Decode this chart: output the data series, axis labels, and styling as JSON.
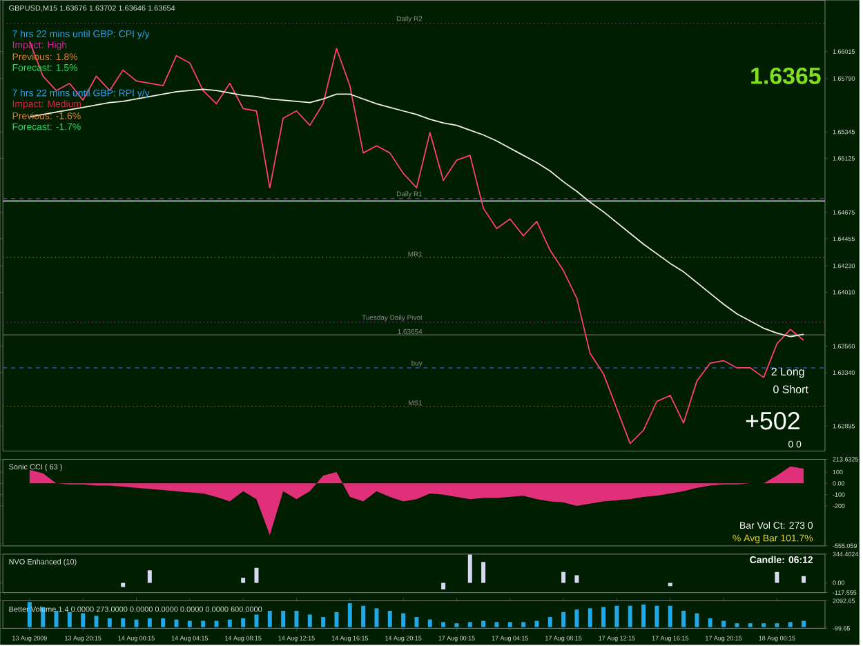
{
  "chart_data": [
    {
      "type": "line",
      "title": "GBPUSD,M15  1.63676 1.63702 1.63646 1.63654",
      "categories": [
        null,
        null,
        null,
        null,
        null,
        null,
        null,
        null,
        null,
        null,
        null,
        null,
        null,
        null,
        null,
        null,
        null,
        null,
        null,
        null,
        null,
        null,
        null,
        null,
        null,
        null,
        null,
        null,
        null,
        null,
        null,
        null,
        null,
        null,
        null,
        null,
        null,
        null,
        null,
        null,
        null,
        null,
        null,
        null,
        null,
        null,
        null,
        null,
        null,
        null,
        null,
        null,
        null,
        null,
        null,
        null,
        null,
        null,
        null,
        null
      ],
      "ylim": [
        1.62687,
        1.66442
      ],
      "tick_labels": "y",
      "yticks": [
        1.66015,
        {
          "value": 1.6579,
          "label": "1.65790"
        },
        1.65345,
        1.65125,
        1.64675,
        1.64455,
        {
          "value": 1.6423,
          "label": "1.64230"
        },
        {
          "value": 1.6401,
          "label": "1.64010"
        },
        {
          "value": 1.6356,
          "label": "1.63560"
        },
        {
          "value": 1.6334,
          "label": "1.63340"
        },
        1.62895
      ],
      "series": [
        {
          "color": "#ff4070",
          "values": [
            1.661,
            1.6581,
            1.6569,
            1.6575,
            1.6561,
            1.6581,
            1.6569,
            1.6586,
            1.6577,
            1.6575,
            1.6573,
            1.6598,
            1.6592,
            1.6569,
            1.6558,
            1.6575,
            1.6554,
            1.6552,
            1.6488,
            1.6546,
            1.6552,
            1.654,
            1.6558,
            1.6604,
            1.6573,
            1.6517,
            1.6523,
            1.6517,
            1.65,
            1.6488,
            1.6534,
            1.6494,
            1.6511,
            1.6515,
            1.6471,
            1.6454,
            1.6462,
            1.6448,
            1.646,
            1.6436,
            1.6419,
            1.6396,
            1.635,
            1.6333,
            1.6304,
            1.6275,
            1.6286,
            1.631,
            1.6315,
            1.6292,
            1.6327,
            1.6342,
            1.6344,
            1.6338,
            1.6338,
            1.633,
            1.6358,
            1.637,
            1.6361,
            null
          ]
        },
        {
          "color": "#f4f0e0",
          "values": [
            1.6547,
            1.6549,
            1.6551,
            1.6553,
            1.6555,
            1.6557,
            1.6559,
            1.656,
            1.6562,
            1.6564,
            1.6566,
            1.6568,
            1.6569,
            1.657,
            1.6569,
            1.6567,
            1.6565,
            1.6564,
            1.6562,
            1.6561,
            1.656,
            1.6559,
            1.6562,
            1.6566,
            1.6566,
            1.6562,
            1.6558,
            1.6555,
            1.6552,
            1.6549,
            1.6545,
            1.6542,
            1.654,
            1.6536,
            1.6532,
            1.6527,
            1.6521,
            1.6515,
            1.6509,
            1.6502,
            1.6493,
            1.6485,
            1.6476,
            1.6468,
            1.6459,
            1.645,
            1.6441,
            1.6433,
            1.6425,
            1.6418,
            1.6409,
            1.64,
            1.6391,
            1.6383,
            1.6377,
            1.6371,
            1.6367,
            1.6364,
            1.6366,
            null
          ]
        }
      ],
      "ref_lines": [
        {
          "axis": "y",
          "value": 1.6625,
          "label": "Daily R2",
          "color": "#a01090",
          "line_style": "dotted"
        },
        {
          "axis": "y",
          "value": 1.6479,
          "label": "Daily R1",
          "color": "#a01090",
          "line_style": "dashed"
        },
        {
          "axis": "y",
          "value": 1.6477,
          "color": "#a0e0e8",
          "line_style": "solid"
        },
        {
          "axis": "y",
          "value": 1.643,
          "label": "MR1",
          "color": "#807020",
          "line_style": "dotted"
        },
        {
          "axis": "y",
          "value": 1.6376,
          "label": "Tuesday  Daily Pivot",
          "color": "#c010c0",
          "line_style": "dotted"
        },
        {
          "axis": "y",
          "value": 1.63654,
          "label": "1.63654",
          "color": "#606060",
          "line_style": "solid"
        },
        {
          "axis": "y",
          "value": 1.6338,
          "label": "buy",
          "color": "#3050c0",
          "line_style": "dashed"
        },
        {
          "axis": "y",
          "value": 1.6306,
          "label": "MS1",
          "color": "#807020",
          "line_style": "dotted"
        }
      ],
      "annotations": [
        "7 hrs 22 mins until GBP: CPI y/y",
        "Impact: High",
        "Previous:  1.8%",
        "Forecast:  1.5%",
        "7 hrs 22 mins until GBP: RPI y/y",
        "Impact: Medium",
        "Previous:  -1.6%",
        "Forecast:  -1.7%",
        "1.6365",
        "2  Long",
        "0  Short",
        "+502",
        "0      0"
      ]
    },
    {
      "type": "area",
      "title": "Sonic CCI  ( 63 )",
      "color": "#e0307a",
      "categories": [
        null,
        null,
        null,
        null,
        null,
        null,
        null,
        null,
        null,
        null,
        null,
        null,
        null,
        null,
        null,
        null,
        null,
        null,
        null,
        null,
        null,
        null,
        null,
        null,
        null,
        null,
        null,
        null,
        null,
        null,
        null,
        null,
        null,
        null,
        null,
        null,
        null,
        null,
        null,
        null,
        null,
        null,
        null,
        null,
        null,
        null,
        null,
        null,
        null,
        null,
        null,
        null,
        null,
        null,
        null,
        null,
        null,
        null,
        null,
        null
      ],
      "ylim": [
        -555.059,
        213.6325
      ],
      "tick_labels": "y",
      "yticks": [
        213.6325,
        100,
        {
          "value": 0,
          "label": "0.00"
        },
        -100,
        -200,
        -555.059
      ],
      "values": [
        120,
        90,
        0,
        -10,
        -10,
        -20,
        -20,
        -30,
        -40,
        -50,
        -60,
        -70,
        -80,
        -90,
        -120,
        -160,
        -70,
        -140,
        -460,
        -70,
        -140,
        -70,
        70,
        100,
        -120,
        -160,
        -70,
        -120,
        -160,
        -140,
        -90,
        -100,
        -120,
        -140,
        -130,
        -130,
        -120,
        -110,
        -140,
        -160,
        -170,
        -200,
        -180,
        -160,
        -150,
        -140,
        -120,
        -110,
        -90,
        -70,
        -40,
        -20,
        -10,
        -10,
        0,
        0,
        70,
        150,
        130,
        null
      ],
      "annotations": [
        "Bar Vol Ct:     273 0",
        "% Avg Bar     101.7%"
      ]
    },
    {
      "type": "bar",
      "title": "NVO Enhanced  (10)",
      "color": "#d8d8f0",
      "categories": [
        null,
        null,
        null,
        null,
        null,
        null,
        null,
        null,
        null,
        null,
        null,
        null,
        null,
        null,
        null,
        null,
        null,
        null,
        null,
        null,
        null,
        null,
        null,
        null,
        null,
        null,
        null,
        null,
        null,
        null,
        null,
        null,
        null,
        null,
        null,
        null,
        null,
        null,
        null,
        null,
        null,
        null,
        null,
        null,
        null,
        null,
        null,
        null,
        null,
        null,
        null,
        null,
        null,
        null,
        null,
        null,
        null,
        null,
        null,
        null
      ],
      "ylim": [
        -117.555,
        344.4024
      ],
      "tick_labels": "y",
      "yticks": [
        344.4024,
        {
          "value": 0,
          "label": "0.00"
        },
        -117.555
      ],
      "values": [
        null,
        null,
        null,
        null,
        null,
        null,
        null,
        -50,
        null,
        150,
        null,
        null,
        null,
        null,
        null,
        null,
        60,
        180,
        null,
        null,
        null,
        null,
        null,
        null,
        null,
        null,
        null,
        null,
        null,
        null,
        null,
        -80,
        null,
        340,
        250,
        null,
        null,
        null,
        null,
        null,
        130,
        90,
        null,
        null,
        null,
        null,
        null,
        null,
        -40,
        null,
        null,
        null,
        null,
        null,
        null,
        null,
        130,
        null,
        80,
        null
      ],
      "annotations": [
        "Candle:  06:12"
      ]
    },
    {
      "type": "bar",
      "title": "Better Volume 1.4 0.0000 273.0000 0.0000 0.0000 0.0000 0.0000 600.0000",
      "color": "#20a8e8",
      "categories": [
        "13 Aug 2009",
        null,
        null,
        null,
        "13 Aug 20:15",
        null,
        null,
        null,
        "14 Aug 00:15",
        null,
        null,
        null,
        "14 Aug 04:15",
        null,
        null,
        null,
        "14 Aug 08:15",
        null,
        null,
        null,
        "14 Aug 12:15",
        null,
        null,
        null,
        "14 Aug 16:15",
        null,
        null,
        null,
        "14 Aug 20:15",
        null,
        null,
        null,
        "17 Aug 00:15",
        null,
        null,
        null,
        "17 Aug 04:15",
        null,
        null,
        null,
        "17 Aug 08:15",
        null,
        null,
        null,
        "17 Aug 12:15",
        null,
        null,
        null,
        "17 Aug 16:15",
        null,
        null,
        null,
        "17 Aug 20:15",
        null,
        null,
        null,
        "18 Aug 00:15",
        null,
        null,
        null
      ],
      "ylim": [
        -99.65,
        2092.65
      ],
      "yticks": [
        2092.65,
        -99.65
      ],
      "values": [
        2000,
        1600,
        1300,
        1200,
        1100,
        900,
        700,
        700,
        600,
        700,
        700,
        600,
        500,
        500,
        500,
        600,
        700,
        1000,
        1300,
        1300,
        1300,
        1000,
        800,
        1200,
        1900,
        1700,
        1500,
        1300,
        1100,
        800,
        600,
        400,
        300,
        400,
        500,
        400,
        400,
        400,
        500,
        800,
        1200,
        1400,
        1500,
        1600,
        1700,
        1700,
        1800,
        1700,
        1700,
        1300,
        1100,
        700,
        500,
        300,
        300,
        300,
        300,
        400,
        500,
        null
      ]
    }
  ]
}
